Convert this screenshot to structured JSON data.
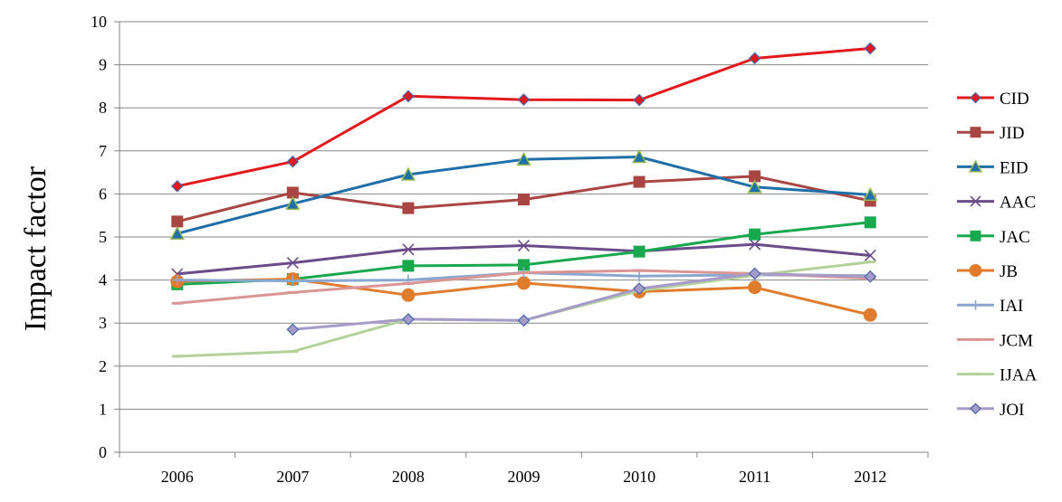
{
  "chart_data": {
    "type": "line",
    "title": "",
    "xlabel": "",
    "ylabel": "Impact factor",
    "categories": [
      "2006",
      "2007",
      "2008",
      "2009",
      "2010",
      "2011",
      "2012"
    ],
    "ylim": [
      0,
      10
    ],
    "yticks": [
      "0",
      "1",
      "2",
      "3",
      "4",
      "5",
      "6",
      "7",
      "8",
      "9",
      "10"
    ],
    "grid": "horizontal",
    "legend_position": "right",
    "series": [
      {
        "name": "CID",
        "color": "#e3191b",
        "marker": "diamond",
        "values": [
          6.18,
          6.75,
          8.27,
          8.19,
          8.18,
          9.15,
          9.38
        ]
      },
      {
        "name": "JID",
        "color": "#a94643",
        "marker": "square",
        "values": [
          5.36,
          6.03,
          5.67,
          5.87,
          6.28,
          6.41,
          5.84
        ]
      },
      {
        "name": "EID",
        "color": "#1f6fa9",
        "marker": "triangle",
        "values": [
          5.08,
          5.77,
          6.45,
          6.8,
          6.86,
          6.16,
          5.98
        ]
      },
      {
        "name": "AAC",
        "color": "#6a4c8a",
        "marker": "x",
        "values": [
          4.14,
          4.4,
          4.71,
          4.8,
          4.67,
          4.83,
          4.57
        ]
      },
      {
        "name": "JAC",
        "color": "#18a84e",
        "marker": "square",
        "values": [
          3.9,
          4.02,
          4.33,
          4.35,
          4.66,
          5.06,
          5.34
        ]
      },
      {
        "name": "JB",
        "color": "#e07c2e",
        "marker": "circle",
        "values": [
          3.97,
          4.02,
          3.65,
          3.93,
          3.73,
          3.83,
          3.19
        ]
      },
      {
        "name": "IAI",
        "color": "#8aa7d0",
        "marker": "plus",
        "values": [
          4.0,
          3.98,
          4.0,
          4.17,
          4.09,
          4.12,
          4.1
        ]
      },
      {
        "name": "JCM",
        "color": "#d99694",
        "marker": "dash",
        "values": [
          3.46,
          3.71,
          3.92,
          4.17,
          4.22,
          4.15,
          4.04
        ]
      },
      {
        "name": "IJAA",
        "color": "#b5d19b",
        "marker": "dash",
        "values": [
          2.23,
          2.34,
          3.09,
          3.06,
          3.75,
          4.11,
          4.42
        ]
      },
      {
        "name": "JOI",
        "color": "#a79cc9",
        "marker": "diamond",
        "values": [
          null,
          2.85,
          3.09,
          3.06,
          3.8,
          4.15,
          4.08
        ]
      }
    ]
  }
}
